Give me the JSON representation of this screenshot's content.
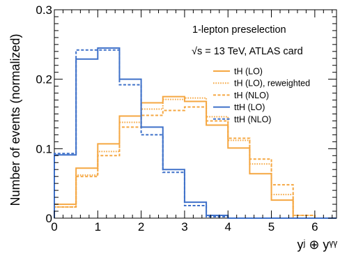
{
  "chart_data": {
    "type": "line",
    "step": true,
    "xlim": [
      0,
      6.5
    ],
    "ylim": [
      0,
      0.3
    ],
    "x_ticks": [
      0,
      1,
      2,
      3,
      4,
      5,
      6
    ],
    "x_tick_labels": [
      "0",
      "1",
      "2",
      "3",
      "4",
      "5",
      "6"
    ],
    "y_ticks": [
      0,
      0.1,
      0.2,
      0.3
    ],
    "y_tick_labels": [
      "0",
      "0.1",
      "0.2",
      "0.3"
    ],
    "ylabel": "Number of events (normalized)",
    "xlabel": "yʲ ⊕ yᵞᵞ",
    "annotations": [
      "1-lepton preselection",
      "√s = 13 TeV, ATLAS card"
    ],
    "legend_position": "upper-right",
    "bin_edges": [
      0,
      0.5,
      1,
      1.5,
      2,
      2.5,
      3,
      3.5,
      4,
      4.5,
      5,
      5.5,
      6,
      6.5
    ],
    "series": [
      {
        "name": "tH (LO)",
        "color": "#f5a742",
        "style": "solid",
        "values": [
          0.02,
          0.072,
          0.107,
          0.147,
          0.166,
          0.175,
          0.168,
          0.134,
          0.101,
          0.064,
          0.026,
          0.0,
          0.0
        ]
      },
      {
        "name": "tH (LO), reweighted",
        "color": "#f5a742",
        "style": "dotted",
        "values": [
          0.016,
          0.062,
          0.096,
          0.138,
          0.157,
          0.171,
          0.173,
          0.146,
          0.112,
          0.078,
          0.034,
          0.004,
          0.0
        ]
      },
      {
        "name": "tH (NLO)",
        "color": "#f5a742",
        "style": "dashed",
        "values": [
          0.016,
          0.06,
          0.09,
          0.131,
          0.148,
          0.155,
          0.16,
          0.14,
          0.115,
          0.085,
          0.048,
          0.004,
          0.0
        ]
      },
      {
        "name": "ttH (LO)",
        "color": "#3f71c9",
        "style": "solid",
        "values": [
          0.091,
          0.229,
          0.245,
          0.2,
          0.131,
          0.07,
          0.023,
          0.004,
          0.0,
          0.0,
          0.0,
          0.0,
          0.0
        ]
      },
      {
        "name": "ttH (NLO)",
        "color": "#3f71c9",
        "style": "dashed",
        "values": [
          0.093,
          0.242,
          0.242,
          0.192,
          0.12,
          0.066,
          0.018,
          0.002,
          0.0,
          0.0,
          0.0,
          0.0,
          0.0
        ]
      }
    ]
  }
}
